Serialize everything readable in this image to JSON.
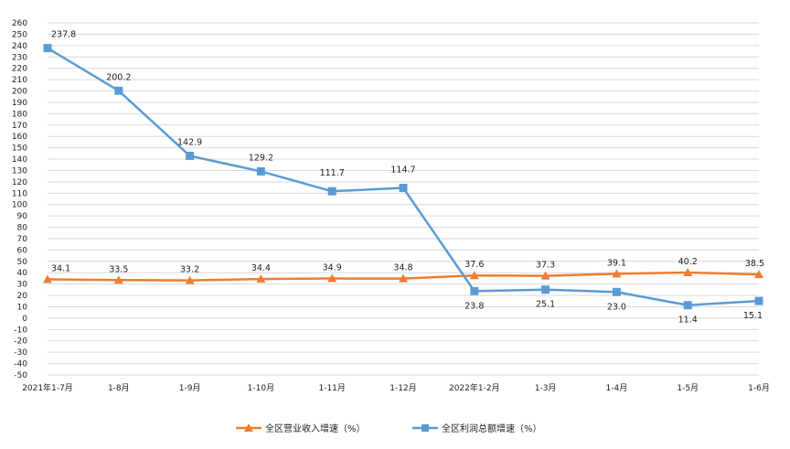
{
  "chart_data": {
    "type": "line",
    "title": "",
    "xlabel": "",
    "ylabel": "",
    "categories": [
      "2021年1-7月",
      "1-8月",
      "1-9月",
      "1-10月",
      "1-11月",
      "1-12月",
      "2022年1-2月",
      "1-3月",
      "1-4月",
      "1-5月",
      "1-6月"
    ],
    "ylim": [
      -50,
      260
    ],
    "yticks": [
      260,
      250,
      240,
      230,
      220,
      210,
      200,
      190,
      180,
      170,
      160,
      150,
      140,
      130,
      120,
      110,
      100,
      90,
      80,
      70,
      60,
      50,
      40,
      30,
      20,
      10,
      0,
      -10,
      -20,
      -30,
      -40,
      -50
    ],
    "grid": true,
    "legend_position": "bottom",
    "series": [
      {
        "name": "全区营业收入增速（%）",
        "color": "#ED7D31",
        "marker": "triangle",
        "values": [
          34.1,
          33.5,
          33.2,
          34.4,
          34.9,
          34.8,
          37.6,
          37.3,
          39.1,
          40.2,
          38.5
        ],
        "labels": [
          "34.1",
          "33.5",
          "33.2",
          "34.4",
          "34.9",
          "34.8",
          "37.6",
          "37.3",
          "39.1",
          "40.2",
          "38.5"
        ]
      },
      {
        "name": "全区利润总额增速（%）",
        "color": "#5B9BD5",
        "marker": "square",
        "values": [
          237.8,
          200.2,
          142.9,
          129.2,
          111.7,
          114.7,
          23.8,
          25.1,
          23.0,
          11.4,
          15.1
        ],
        "labels": [
          "237.8",
          "200.2",
          "142.9",
          "129.2",
          "111.7",
          "114.7",
          "23.8",
          "25.1",
          "23.0",
          "11.4",
          "15.1"
        ]
      }
    ]
  }
}
